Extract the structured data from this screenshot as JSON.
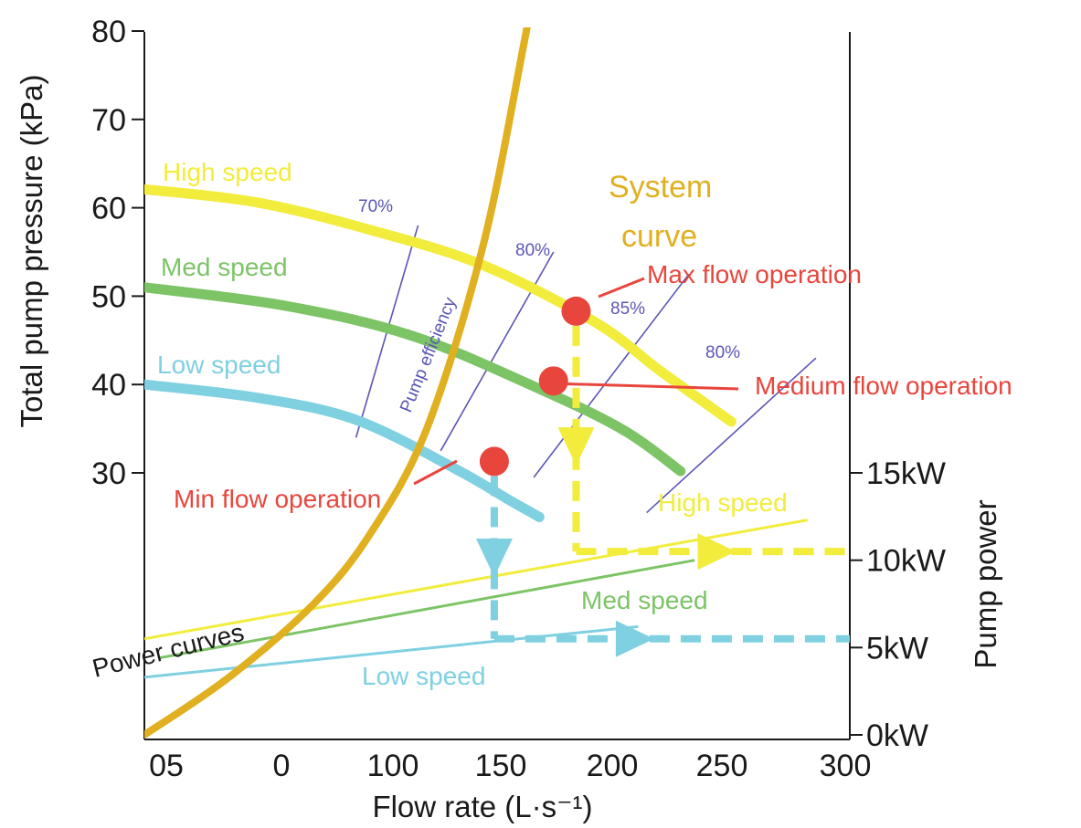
{
  "chart_data": {
    "type": "line",
    "title": "",
    "xlabel": "Flow rate (L·s⁻¹)",
    "ylabel": "Total pump pressure (kPa)",
    "y2label": "Pump power",
    "x_ticks": [
      "05",
      "0",
      "100",
      "150",
      "200",
      "250",
      "300"
    ],
    "xlim": [
      50,
      300
    ],
    "y_ticks": [
      30,
      40,
      50,
      60,
      70,
      80
    ],
    "ylim": [
      30,
      80
    ],
    "y2_ticks": [
      "0kW",
      "5kW",
      "10kW",
      "15kW"
    ],
    "y2lim": [
      0,
      15
    ],
    "colors": {
      "high": "#f2ec3c",
      "med": "#7cc466",
      "low": "#7fd0e0",
      "system": "#e0b020",
      "operation": "#e8453c",
      "efficiency": "#5a55b5",
      "axis": "#1a1a1a"
    },
    "pump_curves": [
      {
        "name": "High speed",
        "color_key": "high",
        "points": [
          [
            50,
            62.1
          ],
          [
            90,
            60.6
          ],
          [
            130,
            57.5
          ],
          [
            170,
            53.5
          ],
          [
            210,
            47.0
          ],
          [
            233,
            41.5
          ],
          [
            258,
            35.8
          ]
        ]
      },
      {
        "name": "Med speed",
        "color_key": "med",
        "points": [
          [
            50,
            51.0
          ],
          [
            100,
            48.9
          ],
          [
            145,
            45.5
          ],
          [
            190,
            39.5
          ],
          [
            220,
            34.8
          ],
          [
            240,
            30.2
          ]
        ]
      },
      {
        "name": "Low speed",
        "color_key": "low",
        "points": [
          [
            50,
            40.0
          ],
          [
            90,
            38.5
          ],
          [
            125,
            36.0
          ],
          [
            160,
            30.5
          ],
          [
            180,
            26.8
          ],
          [
            190,
            25.0
          ]
        ]
      }
    ],
    "system_curve": {
      "name_lines": [
        "System",
        "curve"
      ],
      "color_key": "system",
      "points": [
        [
          50,
          0.0
        ],
        [
          80,
          3.3
        ],
        [
          110,
          7.5
        ],
        [
          130,
          11.5
        ],
        [
          150,
          17.5
        ],
        [
          170,
          28.0
        ],
        [
          185,
          40.0
        ],
        [
          200,
          53.0
        ],
        [
          213,
          65.5
        ]
      ]
    },
    "power_curves": {
      "label": "Power curves",
      "series": [
        {
          "name": "High speed",
          "color_key": "high",
          "points": [
            [
              50,
              5.5
            ],
            [
              285,
              12.3
            ]
          ]
        },
        {
          "name": "Med speed",
          "color_key": "med",
          "points": [
            [
              55,
              4.4
            ],
            [
              245,
              10.0
            ]
          ]
        },
        {
          "name": "Low speed",
          "color_key": "low",
          "points": [
            [
              50,
              3.3
            ],
            [
              225,
              6.2
            ]
          ]
        }
      ]
    },
    "efficiency": {
      "label": "Pump efficiency",
      "lines": [
        {
          "label": "70%",
          "points": [
            [
              125,
              34.0
            ],
            [
              147,
              58.0
            ]
          ]
        },
        {
          "label": "80%",
          "points": [
            [
              155,
              32.5
            ],
            [
              195,
              55.0
            ]
          ]
        },
        {
          "label": "85%",
          "points": [
            [
              188,
              29.5
            ],
            [
              243,
              52.5
            ]
          ]
        },
        {
          "label": "80%",
          "points": [
            [
              228,
              25.5
            ],
            [
              288,
              43.0
            ]
          ]
        }
      ]
    },
    "operating_points": [
      {
        "name": "Max flow operation",
        "x": 203,
        "y": 48.3
      },
      {
        "name": "Medium flow operation",
        "x": 195,
        "y": 40.4
      },
      {
        "name": "Min flow operation",
        "x": 174,
        "y": 31.3
      }
    ],
    "operating_readouts": [
      {
        "from": "Max flow operation",
        "color_key": "high",
        "flow": 203,
        "power_kw": 10.5
      },
      {
        "from": "Min flow operation",
        "color_key": "low",
        "flow": 174,
        "power_kw": 5.5
      }
    ]
  }
}
